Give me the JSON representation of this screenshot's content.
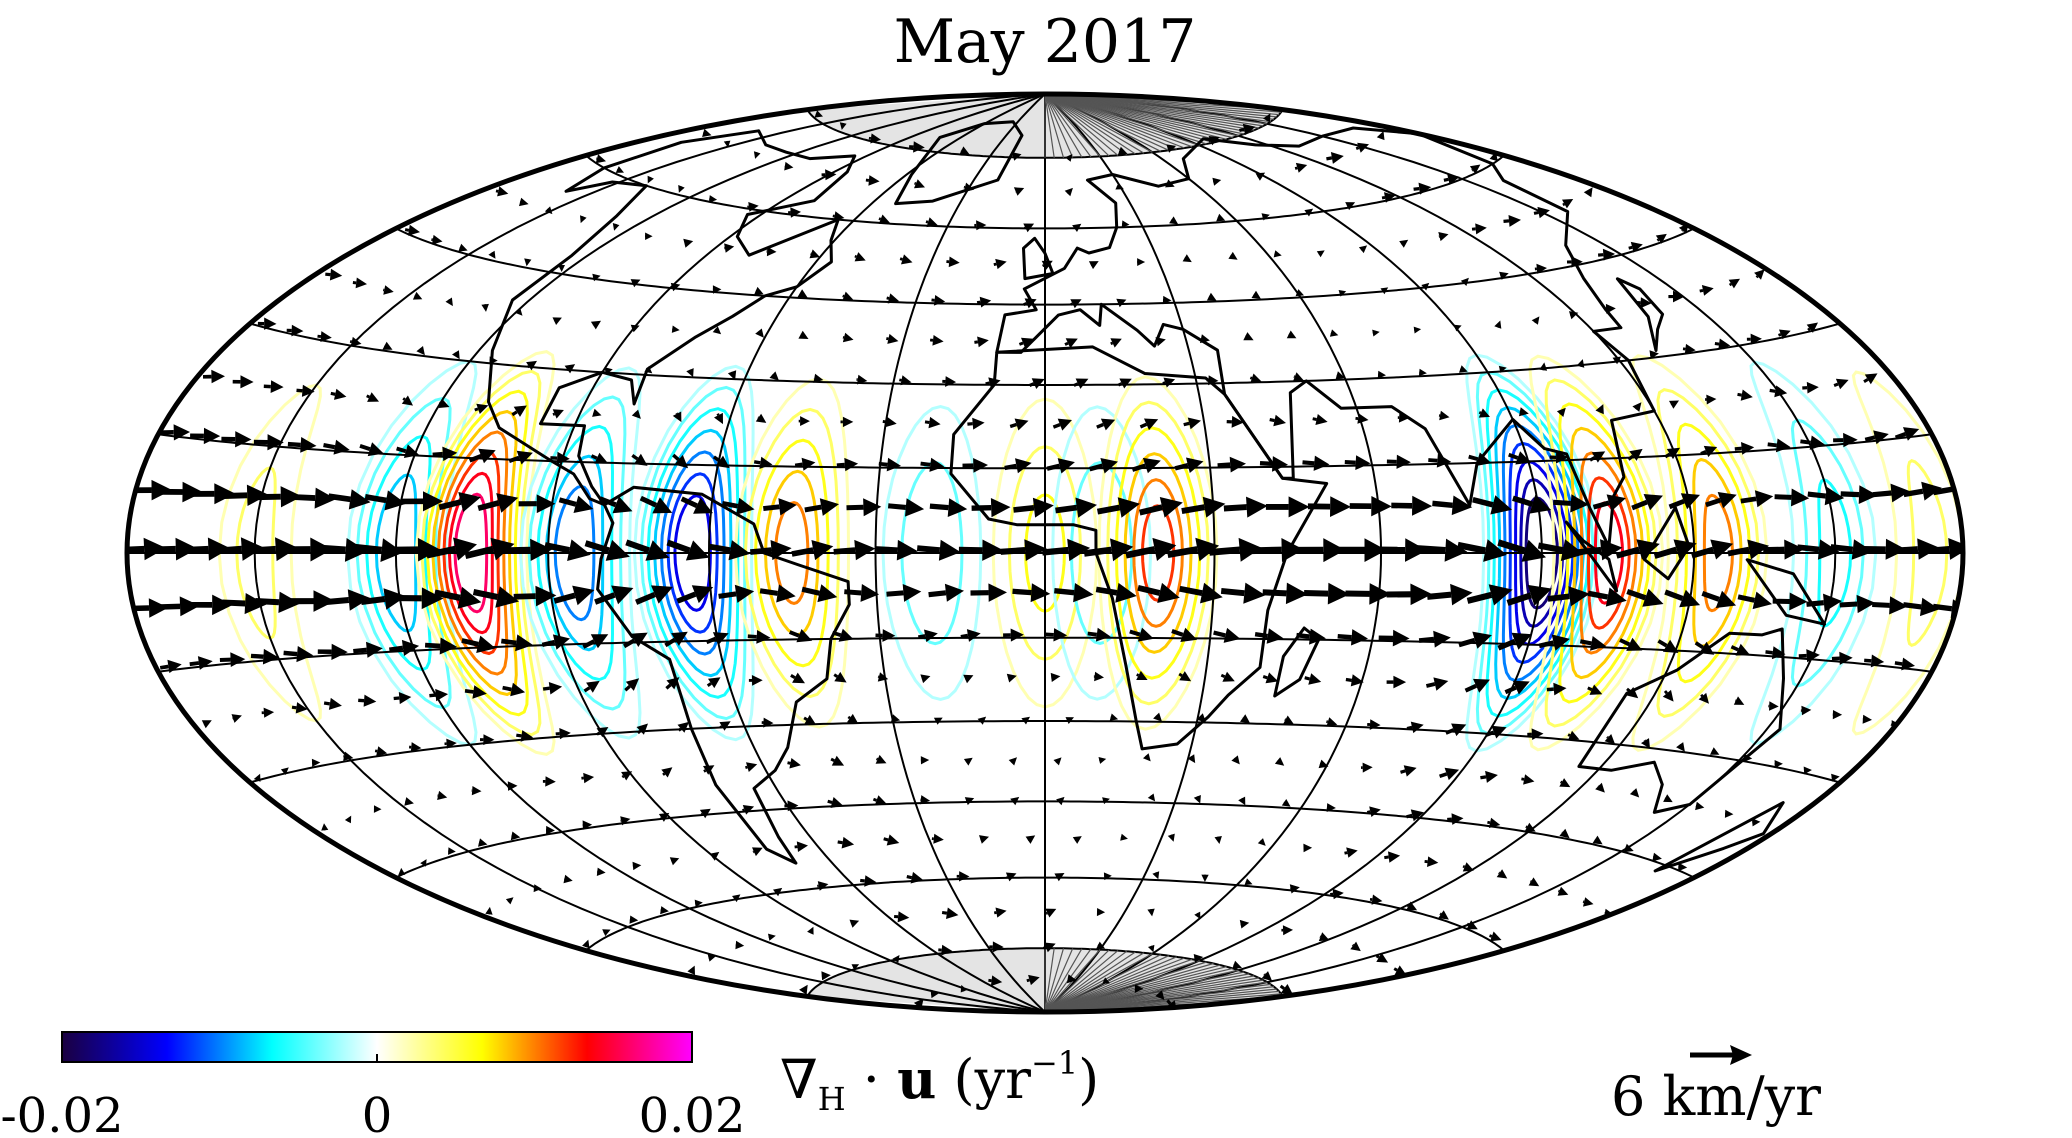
{
  "title": "May 2017",
  "colorbar": {
    "ticks": [
      "-0.02",
      "0",
      "0.02"
    ],
    "range": [
      -0.02,
      0.02
    ],
    "label_parts": [
      "∇",
      "H",
      " · ",
      "u",
      " (yr",
      "−1",
      ")"
    ]
  },
  "scale": {
    "label": "6 km/yr",
    "value_km_per_yr": 6
  },
  "map": {
    "projection": "Hammer-Aitoff",
    "graticule_lon_step_deg": 30,
    "graticule_lat_step_deg": 15,
    "polar_caps_shaded": true,
    "colors": {
      "coastline": "#000000",
      "graticule": "#000000",
      "cap": "#e4e4e4"
    }
  },
  "chart_data": {
    "type": "heatmap",
    "description_variable": "divergence",
    "colormap": [
      "#1a0040",
      "#0000ff",
      "#00ffff",
      "#ffffff",
      "#ffff00",
      "#ff0000",
      "#ff00ff"
    ],
    "contours": [
      {
        "lon": -150,
        "sign": 1,
        "amp": 0.004
      },
      {
        "lon": -120,
        "sign": -1,
        "amp": 0.009
      },
      {
        "lon": -105,
        "sign": 1,
        "amp": 0.017
      },
      {
        "lon": -85,
        "sign": -1,
        "amp": 0.011
      },
      {
        "lon": -63,
        "sign": -1,
        "amp": 0.015
      },
      {
        "lon": -45,
        "sign": 1,
        "amp": 0.01
      },
      {
        "lon": -20,
        "sign": -1,
        "amp": 0.005
      },
      {
        "lon": 0,
        "sign": 1,
        "amp": 0.006
      },
      {
        "lon": 10,
        "sign": -1,
        "amp": 0.005
      },
      {
        "lon": 20,
        "sign": 1,
        "amp": 0.012
      },
      {
        "lon": 90,
        "sign": -1,
        "amp": 0.019
      },
      {
        "lon": 103,
        "sign": 1,
        "amp": 0.014
      },
      {
        "lon": 125,
        "sign": 1,
        "amp": 0.01
      },
      {
        "lon": 150,
        "sign": -1,
        "amp": 0.006
      },
      {
        "lon": 172,
        "sign": 1,
        "amp": 0.004
      }
    ]
  }
}
